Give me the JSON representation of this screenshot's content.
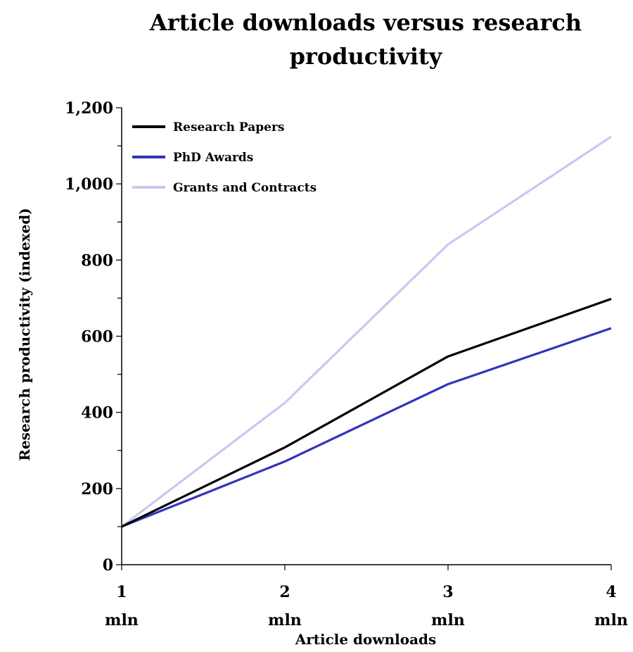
{
  "chart_data": {
    "type": "line",
    "title": "Article downloads versus research productivity",
    "xlabel": "Article downloads",
    "ylabel": "Research productivity (indexed)",
    "categories": [
      "1\nmln",
      "2\nmln",
      "3\nmln",
      "4\nmln"
    ],
    "ylim": [
      0,
      1200
    ],
    "yticks": [
      "0",
      "200",
      "400",
      "600",
      "800",
      "1,000",
      "1,200"
    ],
    "ytick_values": [
      0,
      200,
      400,
      600,
      800,
      1000,
      1200
    ],
    "grid": false,
    "legend_position": "top-left",
    "series": [
      {
        "name": "Research Papers",
        "color": "#000000",
        "values": [
          100,
          308,
          547,
          698
        ]
      },
      {
        "name": "PhD Awards",
        "color": "#3333bb",
        "values": [
          100,
          271,
          474,
          621
        ]
      },
      {
        "name": "Grants and Contracts",
        "color": "#c8c8f0",
        "values": [
          100,
          425,
          841,
          1124
        ]
      }
    ]
  }
}
